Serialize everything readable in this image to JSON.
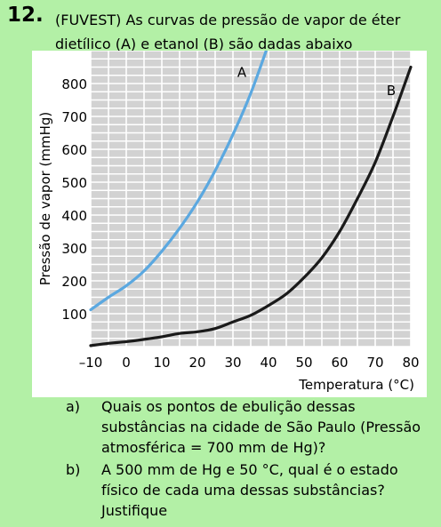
{
  "question": {
    "number": "12.",
    "stem": "(FUVEST) As curvas de pressão de vapor de éter dietílico (A) e etanol (B) são dadas abaixo"
  },
  "subquestions": [
    {
      "label": "a)",
      "text": "Quais os pontos de ebulição dessas substâncias na cidade de São Paulo (Pressão atmosférica = 700 mm de Hg)?"
    },
    {
      "label": "b)",
      "text": "A 500 mm de Hg e 50 °C, qual é o estado físico de cada uma dessas substâncias? Justifique"
    }
  ],
  "chart_data": {
    "type": "line",
    "title": "",
    "xlabel": "Temperatura (°C)",
    "ylabel": "Pressão de vapor (mmHg)",
    "xlim": [
      -10,
      80
    ],
    "ylim": [
      0,
      900
    ],
    "xticks": [
      -10,
      0,
      10,
      20,
      30,
      40,
      50,
      60,
      70,
      80
    ],
    "xtick_labels": [
      "–10",
      "0",
      "10",
      "20",
      "30",
      "40",
      "50",
      "60",
      "70",
      "80"
    ],
    "yticks": [
      100,
      200,
      300,
      400,
      500,
      600,
      700,
      800
    ],
    "ytick_labels": [
      "100",
      "200",
      "300",
      "400",
      "500",
      "600",
      "700",
      "800"
    ],
    "grid": true,
    "background_color": "#d2d2d2",
    "series": [
      {
        "name": "A",
        "color": "#5ba8e0",
        "x": [
          -10,
          -5,
          0,
          5,
          10,
          15,
          20,
          25,
          30,
          35,
          40
        ],
        "y": [
          112,
          150,
          185,
          230,
          290,
          360,
          440,
          535,
          645,
          770,
          920
        ]
      },
      {
        "name": "B",
        "color": "#1a1a1a",
        "x": [
          -10,
          -5,
          0,
          5,
          10,
          15,
          20,
          25,
          30,
          35,
          40,
          45,
          50,
          55,
          60,
          65,
          70,
          75,
          80
        ],
        "y": [
          3,
          10,
          15,
          22,
          30,
          40,
          45,
          55,
          75,
          95,
          125,
          160,
          210,
          270,
          350,
          450,
          560,
          700,
          850
        ]
      }
    ]
  }
}
